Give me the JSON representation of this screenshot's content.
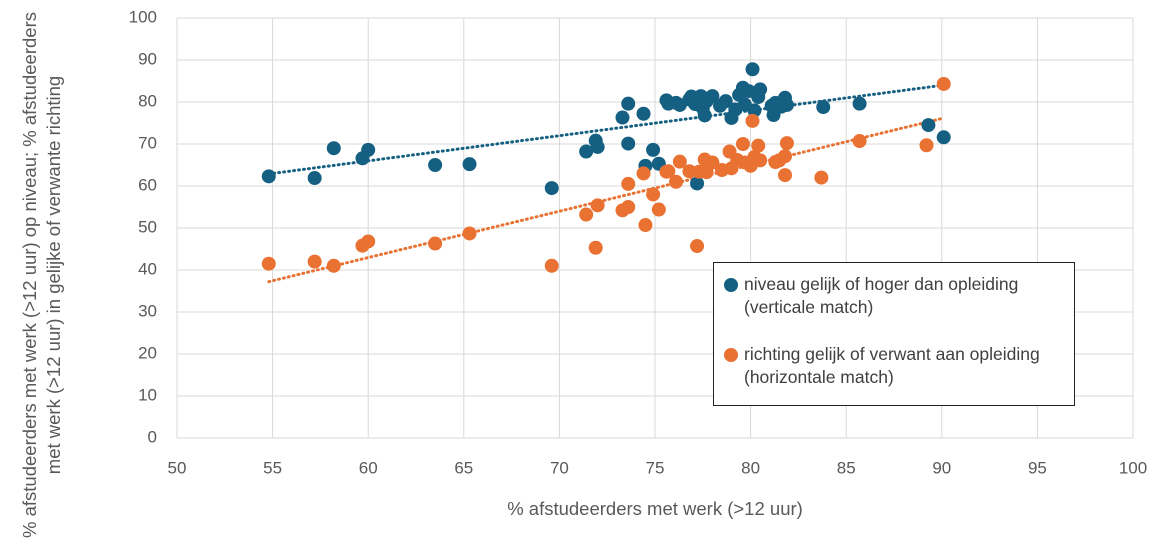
{
  "chart_data": {
    "type": "scatter",
    "x_label": "% afstudeerders met werk (>12 uur)",
    "y_label": "% afstudeerders met werk  (>12 uur) op niveau; % afstudeerders met werk (>12 uur) in gelijke of verwante richting",
    "xlim": [
      50,
      100
    ],
    "xticks": [
      50,
      55,
      60,
      65,
      70,
      75,
      80,
      85,
      90,
      95,
      100
    ],
    "ylim": [
      0,
      100
    ],
    "yticks": [
      0,
      10,
      20,
      30,
      40,
      50,
      60,
      70,
      80,
      90,
      100
    ],
    "grid": true,
    "trendline": true,
    "series": [
      {
        "name": "niveau gelijk of hoger dan opleiding (verticale match)",
        "color": "#156082",
        "x": [
          54.8,
          57.2,
          58.2,
          59.7,
          60,
          63.5,
          65.3,
          69.6,
          71.4,
          71.9,
          72,
          73.3,
          73.6,
          73.6,
          74.4,
          74.5,
          74.9,
          75.2,
          75.6,
          75.7,
          76.1,
          76.3,
          76.8,
          76.9,
          77.1,
          77.2,
          77.4,
          77.5,
          77.6,
          77.7,
          78,
          78.4,
          78.7,
          79,
          79.2,
          79.4,
          79.6,
          79.7,
          79.9,
          80.1,
          80.2,
          80.4,
          80.5,
          81.1,
          81.2,
          81.3,
          81.6,
          81.8,
          81.9,
          83.8,
          85.7,
          89.3,
          90.1
        ],
        "values": [
          62.3,
          61.9,
          69,
          66.6,
          68.6,
          65,
          65.2,
          59.5,
          68.2,
          70.8,
          69.3,
          76.3,
          79.6,
          70.1,
          77.2,
          64.8,
          68.6,
          65.3,
          80.4,
          79.6,
          79.8,
          79.3,
          80.6,
          81.3,
          79.5,
          60.6,
          81.4,
          78.5,
          76.8,
          80.2,
          81.4,
          79.1,
          80.2,
          76.2,
          78.2,
          81.7,
          83.4,
          79.4,
          82.6,
          87.8,
          78,
          81.2,
          83,
          79.1,
          76.9,
          79.8,
          78.9,
          81,
          79.3,
          78.8,
          79.6,
          74.5,
          71.6
        ]
      },
      {
        "name": "richting gelijk of verwant aan opleiding (horizontale match)",
        "color": "#E97132",
        "x": [
          54.8,
          57.2,
          58.2,
          59.7,
          60,
          63.5,
          65.3,
          69.6,
          71.4,
          71.9,
          72,
          73.3,
          73.6,
          73.6,
          74.4,
          74.5,
          74.9,
          75.2,
          75.6,
          75.7,
          76.1,
          76.3,
          76.8,
          77.2,
          77.3,
          77.6,
          77.7,
          78,
          78.5,
          78.9,
          79,
          79.3,
          79.6,
          79.7,
          80,
          80.1,
          80.2,
          80.4,
          80.5,
          81.3,
          81.5,
          81.8,
          81.9,
          81.8,
          83.7,
          85.7,
          89.2,
          90.1
        ],
        "values": [
          41.5,
          42,
          41,
          45.8,
          46.8,
          46.3,
          48.7,
          41,
          53.2,
          45.3,
          55.4,
          54.2,
          60.5,
          55,
          63,
          50.7,
          58,
          54.4,
          63.4,
          63.5,
          61,
          65.8,
          63.5,
          45.7,
          63.4,
          66.3,
          63.3,
          65.6,
          63.8,
          68.2,
          64.2,
          66.2,
          70,
          65.6,
          64.8,
          75.5,
          66.9,
          69.6,
          66.1,
          65.7,
          66.1,
          62.6,
          70.2,
          67.1,
          62,
          70.7,
          69.7,
          84.3
        ]
      }
    ]
  }
}
